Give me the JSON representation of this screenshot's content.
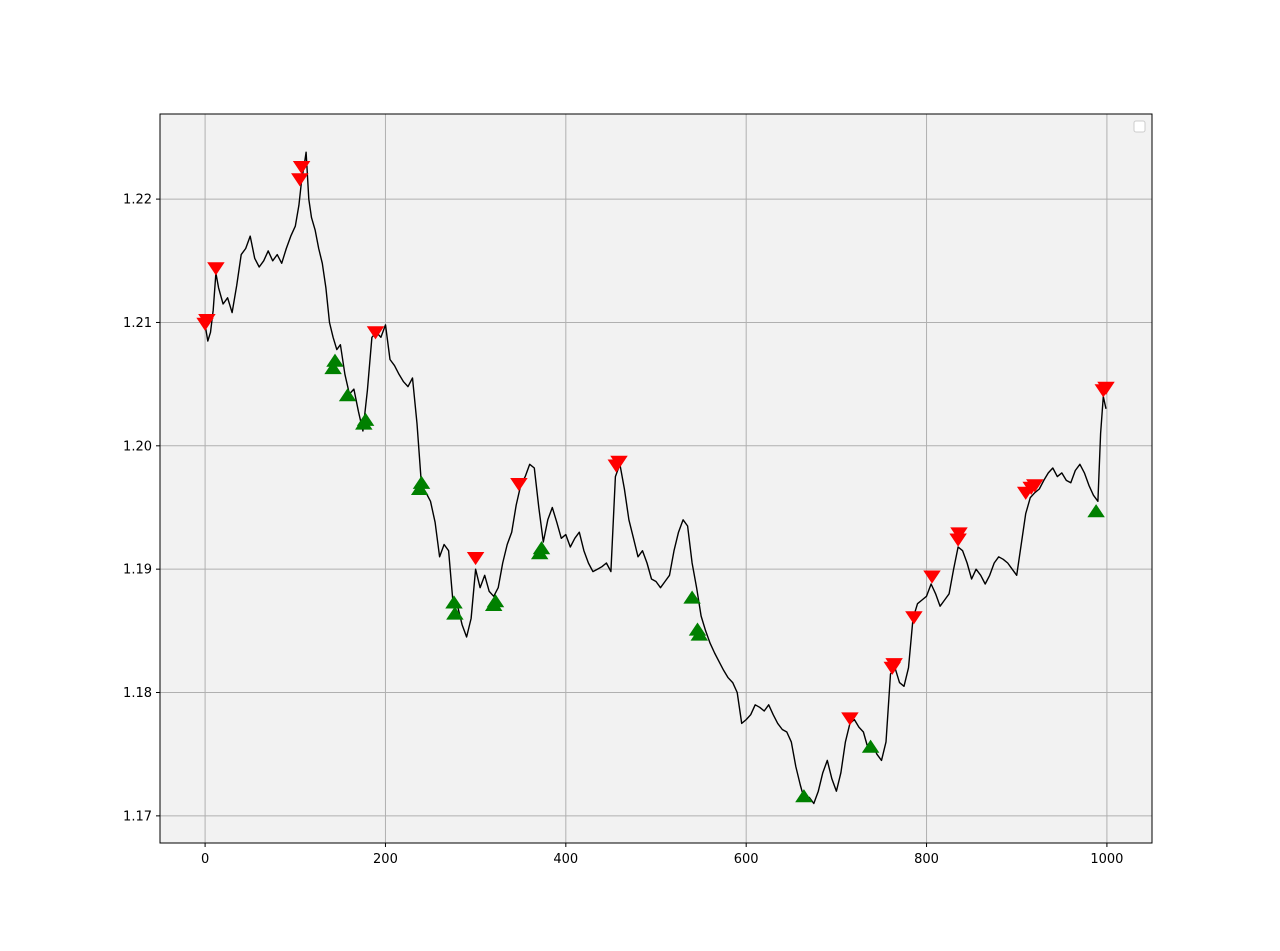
{
  "chart_data": {
    "type": "line",
    "title": "",
    "xlabel": "",
    "ylabel": "",
    "xlim": [
      -50,
      1050
    ],
    "ylim": [
      1.1678,
      1.2269
    ],
    "xticks": [
      0,
      200,
      400,
      600,
      800,
      1000
    ],
    "xtick_labels": [
      "0",
      "200",
      "400",
      "600",
      "800",
      "1000"
    ],
    "yticks": [
      1.17,
      1.18,
      1.19,
      1.2,
      1.21,
      1.22
    ],
    "ytick_labels": [
      "1.17",
      "1.18",
      "1.19",
      "1.20",
      "1.21",
      "1.22"
    ],
    "grid": true,
    "legend": {
      "placement": "top-right",
      "entries": []
    },
    "colors": {
      "price_line": "#000000",
      "sell_marker": "#ff0000",
      "buy_marker": "#008000",
      "plot_background": "#f2f2f2",
      "grid": "#b0b0b0"
    },
    "series": [
      {
        "values_xy": [
          [
            0,
            1.2098
          ],
          [
            3,
            1.2085
          ],
          [
            6,
            1.2092
          ],
          [
            9,
            1.211
          ],
          [
            12,
            1.214
          ],
          [
            15,
            1.2128
          ],
          [
            20,
            1.2115
          ],
          [
            25,
            1.212
          ],
          [
            30,
            1.2108
          ],
          [
            35,
            1.213
          ],
          [
            40,
            1.2155
          ],
          [
            45,
            1.216
          ],
          [
            50,
            1.217
          ],
          [
            55,
            1.2152
          ],
          [
            60,
            1.2145
          ],
          [
            65,
            1.215
          ],
          [
            70,
            1.2158
          ],
          [
            75,
            1.215
          ],
          [
            80,
            1.2155
          ],
          [
            85,
            1.2148
          ],
          [
            90,
            1.216
          ],
          [
            95,
            1.217
          ],
          [
            100,
            1.2178
          ],
          [
            104,
            1.2195
          ],
          [
            107,
            1.2215
          ],
          [
            110,
            1.2228
          ],
          [
            112,
            1.2238
          ],
          [
            115,
            1.22
          ],
          [
            118,
            1.2185
          ],
          [
            122,
            1.2175
          ],
          [
            126,
            1.216
          ],
          [
            130,
            1.2148
          ],
          [
            134,
            1.2128
          ],
          [
            138,
            1.21
          ],
          [
            142,
            1.2088
          ],
          [
            146,
            1.2078
          ],
          [
            150,
            1.2082
          ],
          [
            155,
            1.2058
          ],
          [
            160,
            1.2042
          ],
          [
            165,
            1.2046
          ],
          [
            170,
            1.2028
          ],
          [
            175,
            1.2012
          ],
          [
            180,
            1.2045
          ],
          [
            185,
            1.2088
          ],
          [
            190,
            1.2092
          ],
          [
            195,
            1.2088
          ],
          [
            200,
            1.2098
          ],
          [
            205,
            1.207
          ],
          [
            210,
            1.2065
          ],
          [
            215,
            1.2058
          ],
          [
            220,
            1.2052
          ],
          [
            225,
            1.2048
          ],
          [
            230,
            1.2055
          ],
          [
            235,
            1.2018
          ],
          [
            240,
            1.1968
          ],
          [
            245,
            1.1962
          ],
          [
            250,
            1.1955
          ],
          [
            255,
            1.1938
          ],
          [
            260,
            1.191
          ],
          [
            265,
            1.192
          ],
          [
            270,
            1.1915
          ],
          [
            275,
            1.1872
          ],
          [
            280,
            1.187
          ],
          [
            285,
            1.1855
          ],
          [
            290,
            1.1845
          ],
          [
            295,
            1.186
          ],
          [
            300,
            1.19
          ],
          [
            305,
            1.1885
          ],
          [
            310,
            1.1895
          ],
          [
            315,
            1.1882
          ],
          [
            320,
            1.1878
          ],
          [
            325,
            1.1885
          ],
          [
            330,
            1.1905
          ],
          [
            335,
            1.192
          ],
          [
            340,
            1.193
          ],
          [
            345,
            1.1952
          ],
          [
            350,
            1.1968
          ],
          [
            355,
            1.1975
          ],
          [
            360,
            1.1985
          ],
          [
            365,
            1.1982
          ],
          [
            370,
            1.195
          ],
          [
            375,
            1.1922
          ],
          [
            380,
            1.194
          ],
          [
            385,
            1.195
          ],
          [
            390,
            1.1938
          ],
          [
            395,
            1.1925
          ],
          [
            400,
            1.1928
          ],
          [
            405,
            1.1918
          ],
          [
            410,
            1.1925
          ],
          [
            415,
            1.193
          ],
          [
            420,
            1.1915
          ],
          [
            425,
            1.1905
          ],
          [
            430,
            1.1898
          ],
          [
            435,
            1.19
          ],
          [
            440,
            1.1902
          ],
          [
            445,
            1.1905
          ],
          [
            450,
            1.1898
          ],
          [
            455,
            1.1975
          ],
          [
            460,
            1.1985
          ],
          [
            465,
            1.1965
          ],
          [
            470,
            1.194
          ],
          [
            475,
            1.1925
          ],
          [
            480,
            1.191
          ],
          [
            485,
            1.1915
          ],
          [
            490,
            1.1905
          ],
          [
            495,
            1.1892
          ],
          [
            500,
            1.189
          ],
          [
            505,
            1.1885
          ],
          [
            510,
            1.189
          ],
          [
            515,
            1.1895
          ],
          [
            520,
            1.1915
          ],
          [
            525,
            1.193
          ],
          [
            530,
            1.194
          ],
          [
            535,
            1.1935
          ],
          [
            540,
            1.1905
          ],
          [
            545,
            1.1885
          ],
          [
            550,
            1.1862
          ],
          [
            555,
            1.185
          ],
          [
            560,
            1.184
          ],
          [
            565,
            1.1832
          ],
          [
            570,
            1.1825
          ],
          [
            575,
            1.1818
          ],
          [
            580,
            1.1812
          ],
          [
            585,
            1.1808
          ],
          [
            590,
            1.18
          ],
          [
            595,
            1.1775
          ],
          [
            600,
            1.1778
          ],
          [
            605,
            1.1782
          ],
          [
            610,
            1.179
          ],
          [
            615,
            1.1788
          ],
          [
            620,
            1.1785
          ],
          [
            625,
            1.179
          ],
          [
            630,
            1.1782
          ],
          [
            635,
            1.1775
          ],
          [
            640,
            1.177
          ],
          [
            645,
            1.1768
          ],
          [
            650,
            1.176
          ],
          [
            655,
            1.174
          ],
          [
            660,
            1.1725
          ],
          [
            665,
            1.1712
          ],
          [
            670,
            1.1715
          ],
          [
            675,
            1.171
          ],
          [
            680,
            1.172
          ],
          [
            685,
            1.1735
          ],
          [
            690,
            1.1745
          ],
          [
            695,
            1.173
          ],
          [
            700,
            1.172
          ],
          [
            705,
            1.1735
          ],
          [
            710,
            1.176
          ],
          [
            715,
            1.1775
          ],
          [
            720,
            1.1778
          ],
          [
            725,
            1.1772
          ],
          [
            730,
            1.1768
          ],
          [
            735,
            1.1755
          ],
          [
            740,
            1.1758
          ],
          [
            745,
            1.175
          ],
          [
            750,
            1.1745
          ],
          [
            755,
            1.176
          ],
          [
            760,
            1.1815
          ],
          [
            765,
            1.182
          ],
          [
            770,
            1.1808
          ],
          [
            775,
            1.1805
          ],
          [
            780,
            1.182
          ],
          [
            785,
            1.186
          ],
          [
            790,
            1.1872
          ],
          [
            795,
            1.1875
          ],
          [
            800,
            1.1878
          ],
          [
            805,
            1.1888
          ],
          [
            810,
            1.188
          ],
          [
            815,
            1.187
          ],
          [
            820,
            1.1875
          ],
          [
            825,
            1.188
          ],
          [
            830,
            1.19
          ],
          [
            835,
            1.1918
          ],
          [
            840,
            1.1915
          ],
          [
            845,
            1.1905
          ],
          [
            850,
            1.1892
          ],
          [
            855,
            1.19
          ],
          [
            860,
            1.1895
          ],
          [
            865,
            1.1888
          ],
          [
            870,
            1.1895
          ],
          [
            875,
            1.1905
          ],
          [
            880,
            1.191
          ],
          [
            885,
            1.1908
          ],
          [
            890,
            1.1905
          ],
          [
            895,
            1.19
          ],
          [
            900,
            1.1895
          ],
          [
            905,
            1.192
          ],
          [
            910,
            1.1945
          ],
          [
            915,
            1.1958
          ],
          [
            920,
            1.1962
          ],
          [
            925,
            1.1965
          ],
          [
            930,
            1.1972
          ],
          [
            935,
            1.1978
          ],
          [
            940,
            1.1982
          ],
          [
            945,
            1.1975
          ],
          [
            950,
            1.1978
          ],
          [
            955,
            1.1972
          ],
          [
            960,
            1.197
          ],
          [
            965,
            1.198
          ],
          [
            970,
            1.1985
          ],
          [
            975,
            1.1978
          ],
          [
            980,
            1.1968
          ],
          [
            985,
            1.196
          ],
          [
            990,
            1.1955
          ],
          [
            993,
            1.201
          ],
          [
            996,
            1.204
          ],
          [
            999,
            1.203
          ]
        ],
        "color": "#000000"
      },
      {
        "values_xy": [
          [
            0,
            1.21
          ],
          [
            2,
            1.2103
          ],
          [
            12,
            1.2145
          ],
          [
            105,
            1.2217
          ],
          [
            107,
            1.2227
          ],
          [
            189,
            1.2093
          ],
          [
            300,
            1.191
          ],
          [
            348,
            1.197
          ],
          [
            456,
            1.1985
          ],
          [
            459,
            1.1988
          ],
          [
            715,
            1.178
          ],
          [
            762,
            1.1821
          ],
          [
            764,
            1.1824
          ],
          [
            786,
            1.1862
          ],
          [
            806,
            1.1895
          ],
          [
            835,
            1.1925
          ],
          [
            836,
            1.193
          ],
          [
            910,
            1.1963
          ],
          [
            916,
            1.1967
          ],
          [
            920,
            1.1969
          ],
          [
            996,
            1.2046
          ],
          [
            999,
            1.2048
          ]
        ],
        "marker": "triangle-down",
        "color": "#ff0000"
      },
      {
        "values_xy": [
          [
            142,
            1.2062
          ],
          [
            144,
            1.2068
          ],
          [
            158,
            1.204
          ],
          [
            176,
            1.2017
          ],
          [
            178,
            1.202
          ],
          [
            238,
            1.1964
          ],
          [
            240,
            1.1969
          ],
          [
            276,
            1.1872
          ],
          [
            277,
            1.1863
          ],
          [
            320,
            1.187
          ],
          [
            322,
            1.1873
          ],
          [
            371,
            1.1912
          ],
          [
            373,
            1.1916
          ],
          [
            540,
            1.1876
          ],
          [
            546,
            1.185
          ],
          [
            548,
            1.1846
          ],
          [
            664,
            1.1715
          ],
          [
            738,
            1.1755
          ],
          [
            988,
            1.1946
          ]
        ],
        "marker": "triangle-up",
        "color": "#008000"
      }
    ]
  }
}
